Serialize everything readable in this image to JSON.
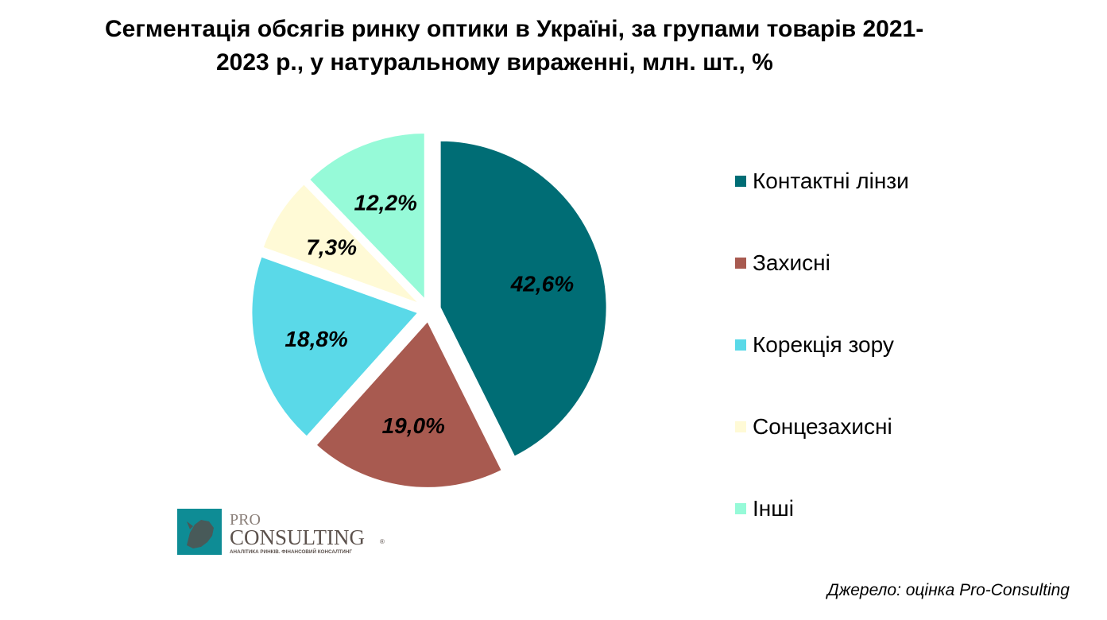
{
  "chart_data": {
    "type": "pie",
    "title_line1": "Сегментація обсягів ринку оптики в Україні, за групами товарів 2021-",
    "title_line2": "2023 р.,  у натуральному вираженні, млн. шт., %",
    "unit": "%",
    "slices": [
      {
        "name": "Контактні лінзи",
        "value": 42.6,
        "label": "42,6%",
        "color": "#006D75"
      },
      {
        "name": "Захисні",
        "value": 19.0,
        "label": "19,0%",
        "color": "#A85A50"
      },
      {
        "name": "Корекція зору",
        "value": 18.8,
        "label": "18,8%",
        "color": "#5AD9E8"
      },
      {
        "name": "Сонцезахисні",
        "value": 7.3,
        "label": "7,3%",
        "color": "#FFFAD6"
      },
      {
        "name": "Інші",
        "value": 12.2,
        "label": "12,2%",
        "color": "#96FAD8"
      }
    ],
    "legend_position": "right"
  },
  "logo": {
    "pro": "PRO",
    "consulting": "CONSULTING",
    "tagline": "АНАЛІТИКА РИНКІВ. ФІНАНСОВИЙ КОНСАЛТИНГ"
  },
  "source": "Джерело: оцінка Pro-Consulting"
}
